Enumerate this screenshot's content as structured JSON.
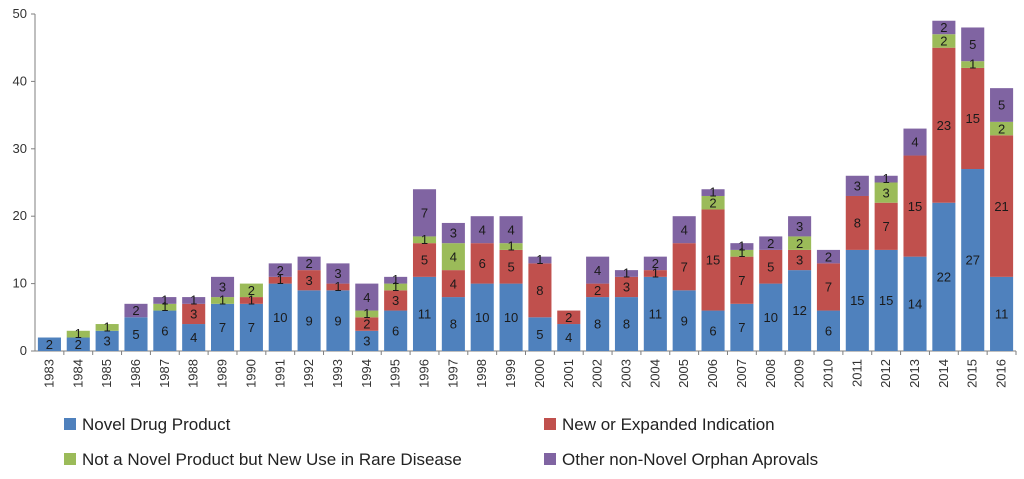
{
  "chart_data": {
    "type": "bar",
    "stacked": true,
    "title": "",
    "xlabel": "",
    "ylabel": "",
    "ylim": [
      0,
      50
    ],
    "yticks": [
      0,
      10,
      20,
      30,
      40,
      50
    ],
    "grid": false,
    "legend_position": "bottom",
    "categories": [
      "1983",
      "1984",
      "1985",
      "1986",
      "1987",
      "1988",
      "1989",
      "1990",
      "1991",
      "1992",
      "1993",
      "1994",
      "1995",
      "1996",
      "1997",
      "1998",
      "1999",
      "2000",
      "2001",
      "2002",
      "2003",
      "2004",
      "2005",
      "2006",
      "2007",
      "2008",
      "2009",
      "2010",
      "2011",
      "2012",
      "2013",
      "2014",
      "2015",
      "2016"
    ],
    "series": [
      {
        "name": "Novel Drug Product",
        "color": "#4F81BD",
        "values": [
          2,
          2,
          3,
          5,
          6,
          4,
          7,
          7,
          10,
          9,
          9,
          3,
          6,
          11,
          8,
          10,
          10,
          5,
          4,
          8,
          8,
          11,
          9,
          6,
          7,
          10,
          12,
          6,
          15,
          15,
          14,
          22,
          27,
          11
        ]
      },
      {
        "name": "New or Expanded Indication",
        "color": "#C0504D",
        "values": [
          0,
          0,
          0,
          0,
          0,
          3,
          0,
          1,
          1,
          3,
          1,
          2,
          3,
          5,
          4,
          6,
          5,
          8,
          2,
          2,
          3,
          1,
          7,
          15,
          7,
          5,
          3,
          7,
          8,
          7,
          15,
          23,
          15,
          21
        ]
      },
      {
        "name": "Not a Novel Product but New Use in Rare Disease",
        "color": "#9BBB59",
        "values": [
          0,
          1,
          1,
          0,
          1,
          0,
          1,
          2,
          0,
          0,
          0,
          1,
          1,
          1,
          4,
          0,
          1,
          0,
          0,
          0,
          0,
          0,
          0,
          2,
          1,
          0,
          2,
          0,
          0,
          3,
          0,
          2,
          1,
          2
        ]
      },
      {
        "name": "Other non-Novel Orphan Aprovals",
        "color": "#8064A2",
        "values": [
          0,
          0,
          0,
          2,
          1,
          1,
          3,
          0,
          2,
          2,
          3,
          4,
          1,
          7,
          3,
          4,
          4,
          1,
          0,
          4,
          1,
          2,
          4,
          1,
          1,
          2,
          3,
          2,
          3,
          1,
          4,
          2,
          5,
          5
        ]
      }
    ]
  }
}
